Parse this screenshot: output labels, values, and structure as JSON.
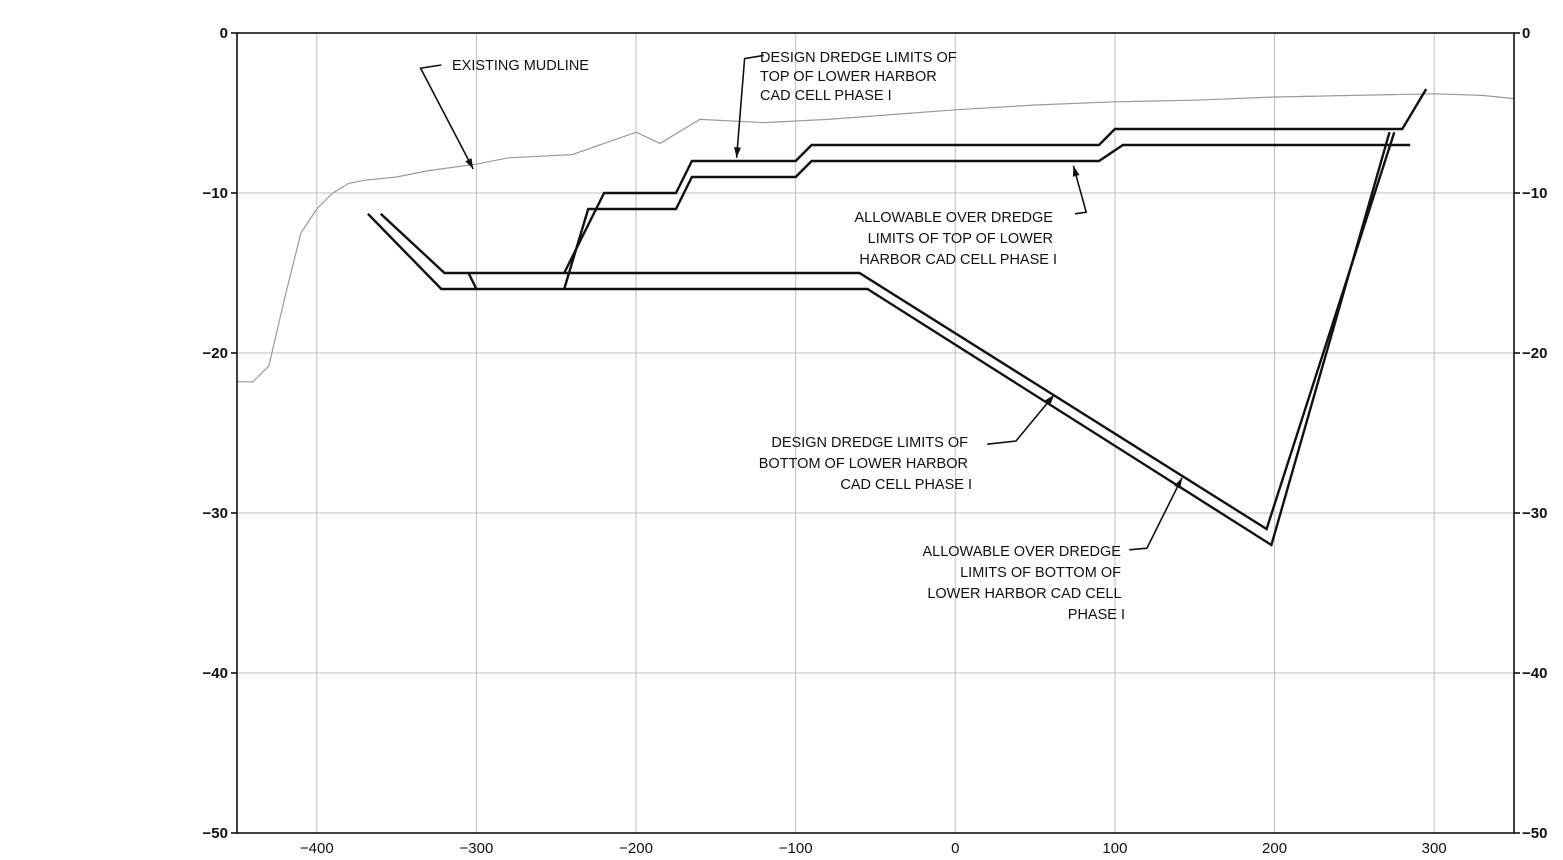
{
  "chart_data": {
    "type": "line",
    "title": "",
    "xlabel": "",
    "ylabel": "",
    "xlim": [
      -450,
      350
    ],
    "ylim": [
      -50,
      0
    ],
    "x_ticks": [
      -400,
      -300,
      -200,
      -100,
      0,
      100,
      200,
      300
    ],
    "x_tick_labels": [
      "−400",
      "−300",
      "−200",
      "−100",
      "0",
      "100",
      "200",
      "300"
    ],
    "y_ticks": [
      0,
      -10,
      -20,
      -30,
      -40,
      -50
    ],
    "y_tick_labels": [
      "0",
      "−10",
      "−20",
      "−30",
      "−40",
      "−50"
    ],
    "grid": true,
    "series": [
      {
        "key": "existing_mudline",
        "color": "#9a9a9a",
        "points": [
          [
            -450,
            -21.8
          ],
          [
            -440,
            -21.8
          ],
          [
            -430,
            -20.8
          ],
          [
            -420,
            -16.5
          ],
          [
            -410,
            -12.5
          ],
          [
            -400,
            -11
          ],
          [
            -390,
            -10
          ],
          [
            -380,
            -9.4
          ],
          [
            -370,
            -9.2
          ],
          [
            -350,
            -9
          ],
          [
            -330,
            -8.6
          ],
          [
            -300,
            -8.2
          ],
          [
            -280,
            -7.8
          ],
          [
            -240,
            -7.6
          ],
          [
            -200,
            -6.2
          ],
          [
            -185,
            -6.9
          ],
          [
            -160,
            -5.4
          ],
          [
            -120,
            -5.6
          ],
          [
            -80,
            -5.4
          ],
          [
            -40,
            -5.1
          ],
          [
            0,
            -4.8
          ],
          [
            50,
            -4.5
          ],
          [
            100,
            -4.3
          ],
          [
            150,
            -4.2
          ],
          [
            200,
            -4
          ],
          [
            250,
            -3.9
          ],
          [
            300,
            -3.8
          ],
          [
            330,
            -3.9
          ],
          [
            350,
            -4.1
          ]
        ]
      },
      {
        "key": "design_top",
        "color": "#111111",
        "points": [
          [
            -245,
            -15
          ],
          [
            -220,
            -10
          ],
          [
            -175,
            -10
          ],
          [
            -165,
            -8
          ],
          [
            -100,
            -8
          ],
          [
            -90,
            -7
          ],
          [
            90,
            -7
          ],
          [
            100,
            -6
          ],
          [
            280,
            -6
          ],
          [
            295,
            -3.5
          ]
        ]
      },
      {
        "key": "allowable_top",
        "color": "#111111",
        "points": [
          [
            -245,
            -16
          ],
          [
            -230,
            -11
          ],
          [
            -175,
            -11
          ],
          [
            -165,
            -9
          ],
          [
            -100,
            -9
          ],
          [
            -90,
            -8
          ],
          [
            90,
            -8
          ],
          [
            105,
            -7
          ],
          [
            285,
            -7
          ]
        ]
      },
      {
        "key": "design_bottom",
        "color": "#111111",
        "points": [
          [
            -360,
            -11.3
          ],
          [
            -320,
            -15
          ],
          [
            -60,
            -15
          ],
          [
            195,
            -31
          ],
          [
            275,
            -6.2
          ]
        ]
      },
      {
        "key": "allowable_bottom",
        "color": "#111111",
        "points": [
          [
            -368,
            -11.3
          ],
          [
            -322,
            -16
          ],
          [
            -55,
            -16
          ],
          [
            198,
            -32
          ],
          [
            272,
            -6.2
          ]
        ]
      },
      {
        "key": "left_wall_step",
        "color": "#111111",
        "points": [
          [
            -305,
            -15
          ],
          [
            -300,
            -16
          ]
        ]
      }
    ],
    "annotations": [
      {
        "key": "existing_mudline",
        "lines": [
          "EXISTING MUDLINE"
        ],
        "leader": [
          [
            -302,
            -8.5
          ],
          [
            -335,
            -2.2
          ],
          [
            -322,
            -2
          ]
        ]
      },
      {
        "key": "design_top",
        "lines": [
          "DESIGN DREDGE LIMITS OF",
          "TOP OF LOWER HARBOR",
          "CAD CELL PHASE I"
        ],
        "leader": [
          [
            -137,
            -7.8
          ],
          [
            -132,
            -1.6
          ],
          [
            -120,
            -1.4
          ]
        ]
      },
      {
        "key": "allowable_top",
        "lines": [
          "ALLOWABLE OVER DREDGE",
          "LIMITS OF TOP OF LOWER",
          "HARBOR CAD CELL PHASE I"
        ],
        "leader": [
          [
            74,
            -8.3
          ],
          [
            82,
            -11.2
          ],
          [
            75,
            -11.3
          ]
        ]
      },
      {
        "key": "design_bottom",
        "lines": [
          "DESIGN DREDGE LIMITS OF",
          "BOTTOM OF LOWER HARBOR",
          "CAD CELL PHASE I"
        ],
        "leader": [
          [
            62,
            -22.6
          ],
          [
            38,
            -25.5
          ],
          [
            20,
            -25.7
          ]
        ]
      },
      {
        "key": "allowable_bottom",
        "lines": [
          "ALLOWABLE OVER DREDGE",
          "LIMITS OF BOTTOM OF",
          "LOWER HARBOR CAD CELL",
          "PHASE I"
        ],
        "leader": [
          [
            142,
            -27.8
          ],
          [
            120,
            -32.2
          ],
          [
            109,
            -32.3
          ]
        ]
      }
    ]
  }
}
